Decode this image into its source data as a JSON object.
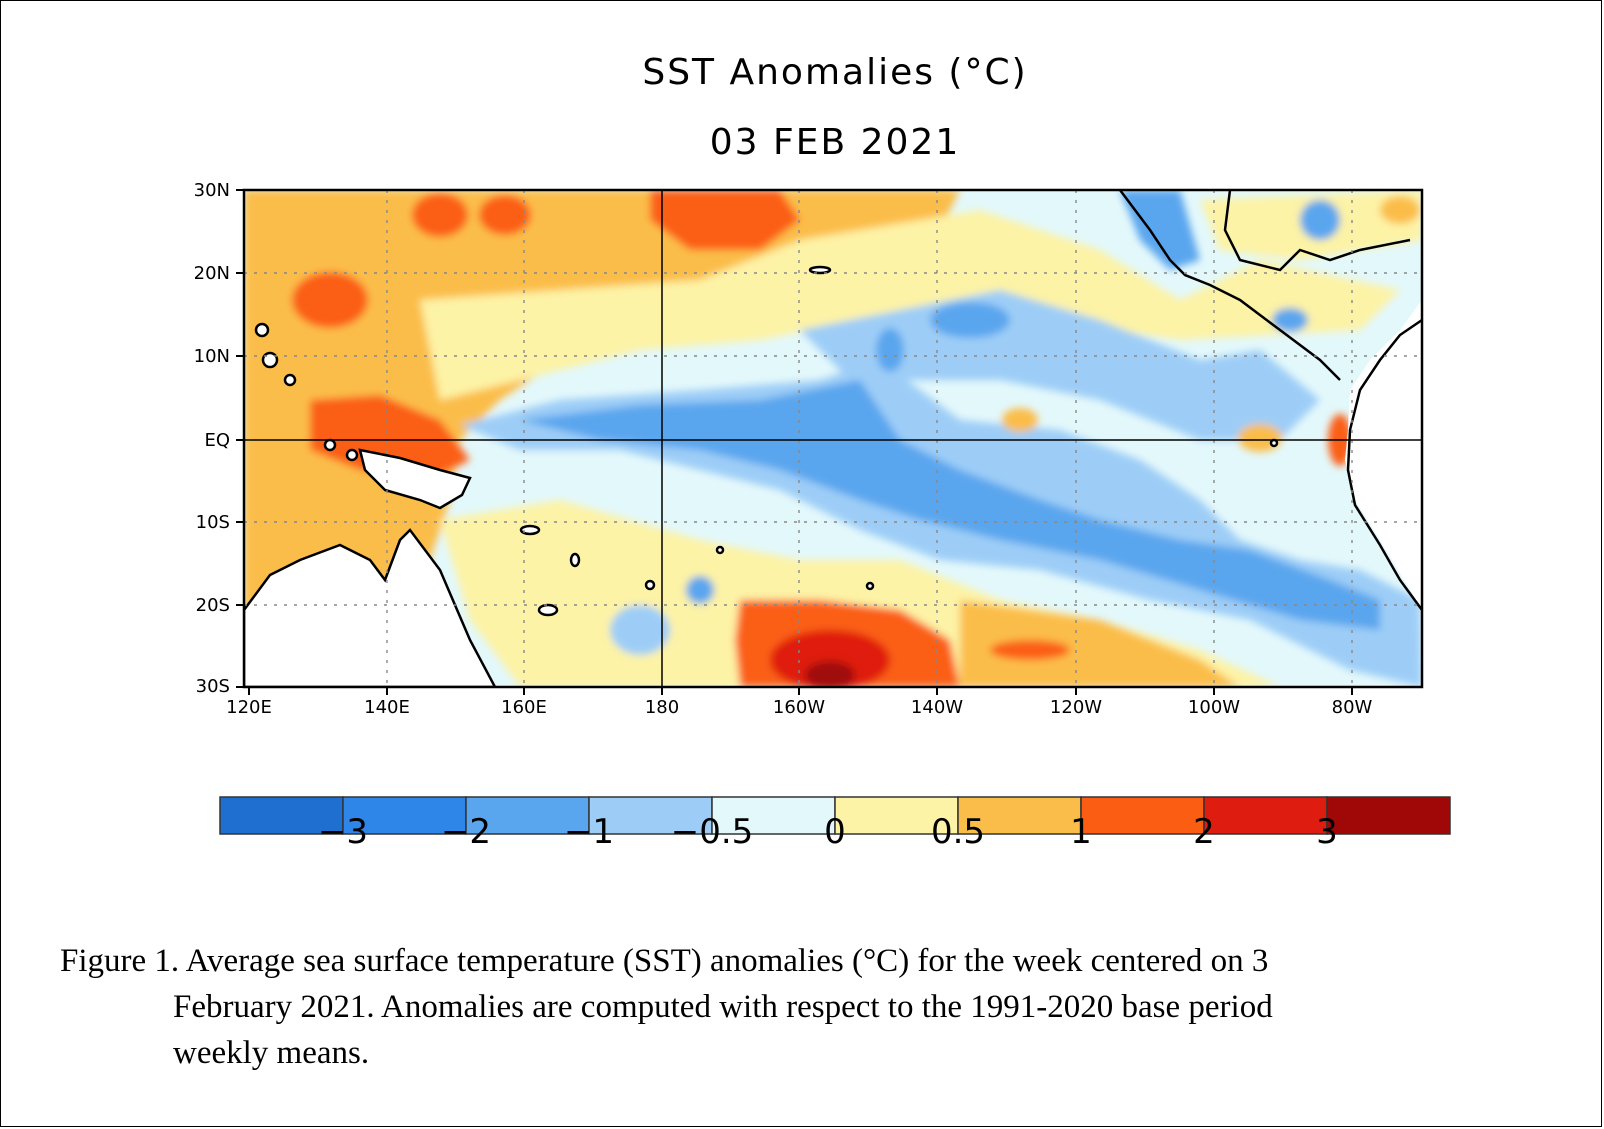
{
  "title": "SST Anomalies (°C)",
  "date": "03 FEB 2021",
  "map": {
    "lat_labels": [
      "30N",
      "20N",
      "10N",
      "EQ",
      "10S",
      "20S",
      "30S"
    ],
    "lon_labels": [
      "120E",
      "140E",
      "160E",
      "180",
      "160W",
      "140W",
      "120W",
      "100W",
      "80W"
    ],
    "lat_range": [
      "30S",
      "30N"
    ],
    "lon_range": [
      "120E",
      "70W"
    ],
    "reference_lines": [
      "EQ",
      "180"
    ]
  },
  "colorbar": {
    "labels": [
      "−3",
      "−2",
      "−1",
      "−0.5",
      "0",
      "0.5",
      "1",
      "2",
      "3"
    ],
    "colors": [
      "#1f6fd0",
      "#2e86e8",
      "#5aa6ee",
      "#9dcdf7",
      "#e3f8fb",
      "#fdf3a6",
      "#fbbd4a",
      "#fb5e12",
      "#df1c10",
      "#a00707"
    ]
  },
  "caption": {
    "line1": "Figure  1. Average sea surface temperature (SST) anomalies  (°C) for the week centered on 3",
    "line2": "February 2021.  Anomalies  are computed  with respect to the 1991-2020  base period",
    "line3": "weekly means."
  }
}
